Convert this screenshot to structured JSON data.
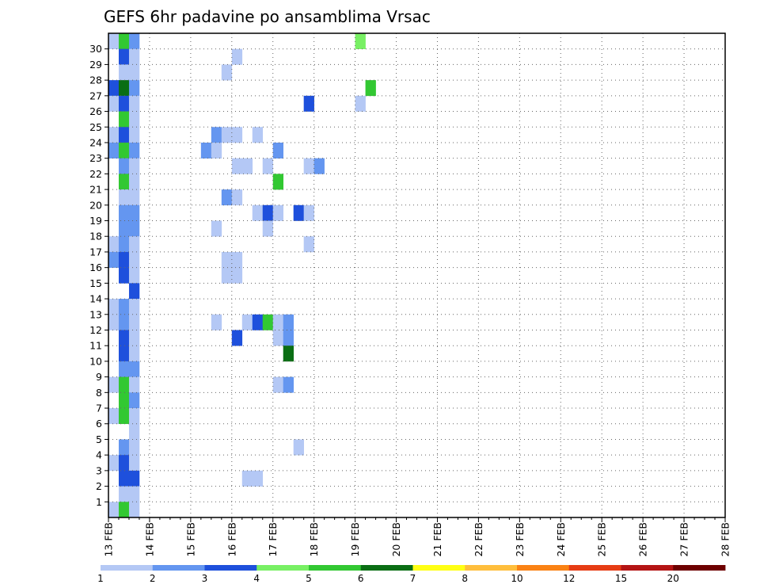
{
  "chart_data": {
    "type": "heatmap",
    "title": "GEFS 6hr padavine po ansamblima Vrsac",
    "xlabel": "",
    "ylabel": "",
    "x_tick_labels": [
      "13 FEB",
      "14 FEB",
      "15 FEB",
      "16 FEB",
      "17 FEB",
      "18 FEB",
      "19 FEB",
      "20 FEB",
      "21 FEB",
      "22 FEB",
      "23 FEB",
      "24 FEB",
      "25 FEB",
      "26 FEB",
      "27 FEB",
      "28 FEB"
    ],
    "y_tick_labels": [
      "1",
      "2",
      "3",
      "4",
      "5",
      "6",
      "7",
      "8",
      "9",
      "10",
      "11",
      "12",
      "13",
      "14",
      "15",
      "16",
      "17",
      "18",
      "19",
      "20",
      "21",
      "22",
      "23",
      "24",
      "25",
      "26",
      "27",
      "28",
      "29",
      "30"
    ],
    "x_range_days": [
      0,
      15
    ],
    "y_range": [
      0,
      30
    ],
    "time_step_hours": 6,
    "grid": true,
    "colorbar": {
      "labels": [
        "1",
        "2",
        "3",
        "4",
        "5",
        "6",
        "7",
        "8",
        "10",
        "12",
        "15",
        "20"
      ],
      "colors": [
        "#b4c8f5",
        "#6496f0",
        "#1e50dc",
        "#78f064",
        "#32c832",
        "#0a6e14",
        "#ffff14",
        "#ffbe3c",
        "#fa8214",
        "#e63c14",
        "#b41414",
        "#6e0000"
      ]
    },
    "cells_note": "each cell: [member_row, six_hour_index_from_13FEB00, intensity_class 1-12]",
    "cells": [
      [
        30,
        0,
        1
      ],
      [
        30,
        1,
        5
      ],
      [
        30,
        2,
        2
      ],
      [
        30,
        24,
        4
      ],
      [
        29,
        1,
        3
      ],
      [
        29,
        2,
        1
      ],
      [
        29,
        12,
        1
      ],
      [
        28,
        1,
        1
      ],
      [
        28,
        2,
        1
      ],
      [
        28,
        11,
        1
      ],
      [
        27,
        0,
        3
      ],
      [
        27,
        1,
        6
      ],
      [
        27,
        2,
        2
      ],
      [
        27,
        25,
        5
      ],
      [
        26,
        0,
        1
      ],
      [
        26,
        1,
        3
      ],
      [
        26,
        2,
        1
      ],
      [
        26,
        19,
        3
      ],
      [
        26,
        24,
        1
      ],
      [
        25,
        1,
        5
      ],
      [
        25,
        2,
        1
      ],
      [
        24,
        0,
        1
      ],
      [
        24,
        1,
        3
      ],
      [
        24,
        2,
        1
      ],
      [
        24,
        10,
        2
      ],
      [
        24,
        11,
        1
      ],
      [
        24,
        12,
        1
      ],
      [
        24,
        14,
        1
      ],
      [
        23,
        0,
        2
      ],
      [
        23,
        1,
        5
      ],
      [
        23,
        2,
        2
      ],
      [
        23,
        9,
        2
      ],
      [
        23,
        10,
        1
      ],
      [
        23,
        16,
        2
      ],
      [
        22,
        1,
        2
      ],
      [
        22,
        2,
        1
      ],
      [
        22,
        12,
        1
      ],
      [
        22,
        13,
        1
      ],
      [
        22,
        15,
        1
      ],
      [
        22,
        19,
        1
      ],
      [
        22,
        20,
        2
      ],
      [
        21,
        1,
        5
      ],
      [
        21,
        2,
        1
      ],
      [
        21,
        16,
        5
      ],
      [
        20,
        1,
        1
      ],
      [
        20,
        2,
        1
      ],
      [
        20,
        11,
        2
      ],
      [
        20,
        12,
        1
      ],
      [
        19,
        1,
        2
      ],
      [
        19,
        2,
        2
      ],
      [
        19,
        14,
        1
      ],
      [
        19,
        15,
        3
      ],
      [
        19,
        16,
        1
      ],
      [
        19,
        18,
        3
      ],
      [
        19,
        19,
        1
      ],
      [
        18,
        1,
        2
      ],
      [
        18,
        2,
        2
      ],
      [
        18,
        10,
        1
      ],
      [
        18,
        15,
        1
      ],
      [
        17,
        0,
        1
      ],
      [
        17,
        1,
        2
      ],
      [
        17,
        2,
        1
      ],
      [
        17,
        19,
        1
      ],
      [
        16,
        0,
        2
      ],
      [
        16,
        1,
        3
      ],
      [
        16,
        2,
        1
      ],
      [
        16,
        11,
        1
      ],
      [
        16,
        12,
        1
      ],
      [
        15,
        1,
        3
      ],
      [
        15,
        2,
        1
      ],
      [
        15,
        11,
        1
      ],
      [
        15,
        12,
        1
      ],
      [
        14,
        2,
        3
      ],
      [
        13,
        0,
        1
      ],
      [
        13,
        1,
        2
      ],
      [
        13,
        2,
        1
      ],
      [
        12,
        0,
        1
      ],
      [
        12,
        1,
        2
      ],
      [
        12,
        2,
        1
      ],
      [
        12,
        10,
        1
      ],
      [
        12,
        13,
        1
      ],
      [
        12,
        14,
        3
      ],
      [
        12,
        15,
        5
      ],
      [
        12,
        16,
        1
      ],
      [
        12,
        17,
        2
      ],
      [
        11,
        1,
        3
      ],
      [
        11,
        2,
        1
      ],
      [
        11,
        12,
        3
      ],
      [
        11,
        16,
        1
      ],
      [
        11,
        17,
        2
      ],
      [
        10,
        1,
        3
      ],
      [
        10,
        2,
        1
      ],
      [
        10,
        17,
        6
      ],
      [
        9,
        1,
        2
      ],
      [
        9,
        2,
        2
      ],
      [
        8,
        0,
        1
      ],
      [
        8,
        1,
        5
      ],
      [
        8,
        2,
        1
      ],
      [
        8,
        16,
        1
      ],
      [
        8,
        17,
        2
      ],
      [
        7,
        1,
        5
      ],
      [
        7,
        2,
        2
      ],
      [
        6,
        0,
        1
      ],
      [
        6,
        1,
        5
      ],
      [
        6,
        2,
        1
      ],
      [
        5,
        2,
        1
      ],
      [
        4,
        1,
        2
      ],
      [
        4,
        2,
        1
      ],
      [
        4,
        18,
        1
      ],
      [
        3,
        0,
        1
      ],
      [
        3,
        1,
        3
      ],
      [
        3,
        2,
        1
      ],
      [
        2,
        1,
        3
      ],
      [
        2,
        2,
        3
      ],
      [
        2,
        13,
        1
      ],
      [
        2,
        14,
        1
      ],
      [
        1,
        1,
        1
      ],
      [
        1,
        2,
        1
      ],
      [
        0,
        0,
        1
      ],
      [
        0,
        1,
        5
      ],
      [
        0,
        2,
        1
      ]
    ]
  }
}
